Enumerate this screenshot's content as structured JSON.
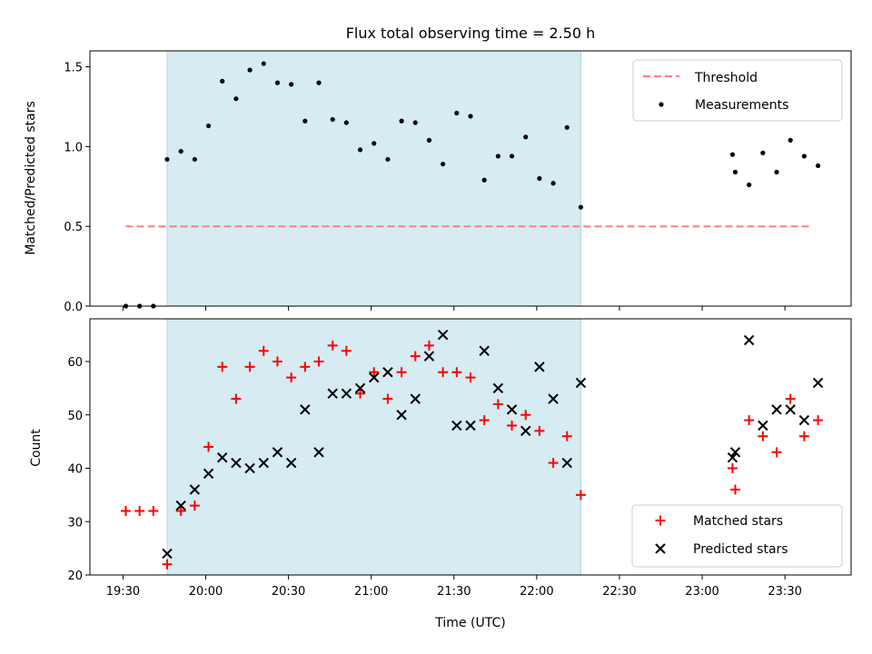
{
  "chart_data": {
    "title": "Flux total observing time = 2.50 h",
    "xlabel": "Time (UTC)",
    "x_ticks": [
      "19:30",
      "20:00",
      "20:30",
      "21:00",
      "21:30",
      "22:00",
      "22:30",
      "23:00",
      "23:30"
    ],
    "x_tick_minutes": [
      1170,
      1200,
      1230,
      1260,
      1290,
      1320,
      1350,
      1380,
      1410
    ],
    "xlim": [
      "19:18",
      "23:54"
    ],
    "shaded_span": [
      "19:46",
      "22:16"
    ],
    "colors": {
      "shade": "#add8e6",
      "threshold": "#ff7f7f",
      "measurements": "#000000",
      "matched": "#ff0000",
      "predicted": "#000000"
    },
    "panels": [
      {
        "type": "scatter",
        "ylabel": "Matched/Predicted stars",
        "ylim": [
          0,
          1.6
        ],
        "yticks": [
          0.0,
          0.5,
          1.0,
          1.5
        ],
        "ytick_labels": [
          "0.0",
          "0.5",
          "1.0",
          "1.5"
        ],
        "legend_position": "top-right",
        "threshold": {
          "name": "Threshold",
          "value": 0.5,
          "x_range": [
            "19:31",
            "23:40"
          ]
        },
        "series": [
          {
            "name": "Measurements",
            "x": [
              "19:31",
              "19:36",
              "19:41",
              "19:46",
              "19:51",
              "19:56",
              "20:01",
              "20:06",
              "20:11",
              "20:16",
              "20:21",
              "20:26",
              "20:31",
              "20:36",
              "20:41",
              "20:46",
              "20:51",
              "20:56",
              "21:01",
              "21:06",
              "21:11",
              "21:16",
              "21:21",
              "21:26",
              "21:31",
              "21:36",
              "21:41",
              "21:46",
              "21:51",
              "21:56",
              "22:01",
              "22:06",
              "22:11",
              "22:16",
              "23:11",
              "23:12",
              "23:17",
              "23:22",
              "23:27",
              "23:32",
              "23:37",
              "23:42"
            ],
            "y": [
              0,
              0,
              0,
              0.92,
              0.97,
              0.92,
              1.13,
              1.41,
              1.3,
              1.48,
              1.52,
              1.4,
              1.39,
              1.16,
              1.4,
              1.17,
              1.15,
              0.98,
              1.02,
              0.92,
              1.16,
              1.15,
              1.04,
              0.89,
              1.21,
              1.19,
              0.79,
              0.94,
              0.94,
              1.06,
              0.8,
              0.77,
              1.12,
              0.62,
              0.95,
              0.84,
              0.76,
              0.96,
              0.84,
              1.04,
              0.94,
              0.88
            ]
          }
        ]
      },
      {
        "type": "scatter",
        "ylabel": "Count",
        "ylim": [
          20,
          68
        ],
        "yticks": [
          20,
          30,
          40,
          50,
          60
        ],
        "ytick_labels": [
          "20",
          "30",
          "40",
          "50",
          "60"
        ],
        "legend_position": "bottom-right",
        "series": [
          {
            "name": "Matched stars",
            "marker": "+",
            "x": [
              "19:31",
              "19:36",
              "19:41",
              "19:46",
              "19:51",
              "19:56",
              "20:01",
              "20:06",
              "20:11",
              "20:16",
              "20:21",
              "20:26",
              "20:31",
              "20:36",
              "20:41",
              "20:46",
              "20:51",
              "20:56",
              "21:01",
              "21:06",
              "21:11",
              "21:16",
              "21:21",
              "21:26",
              "21:31",
              "21:36",
              "21:41",
              "21:46",
              "21:51",
              "21:56",
              "22:01",
              "22:06",
              "22:11",
              "22:16",
              "23:11",
              "23:12",
              "23:17",
              "23:22",
              "23:27",
              "23:32",
              "23:37",
              "23:42"
            ],
            "y": [
              32,
              32,
              32,
              22,
              32,
              33,
              44,
              59,
              53,
              59,
              62,
              60,
              57,
              59,
              60,
              63,
              62,
              54,
              58,
              53,
              58,
              61,
              63,
              58,
              58,
              57,
              49,
              52,
              48,
              50,
              47,
              41,
              46,
              35,
              40,
              36,
              49,
              46,
              43,
              53,
              46,
              49
            ]
          },
          {
            "name": "Predicted stars",
            "marker": "x",
            "x": [
              "19:46",
              "19:51",
              "19:56",
              "20:01",
              "20:06",
              "20:11",
              "20:16",
              "20:21",
              "20:26",
              "20:31",
              "20:36",
              "20:41",
              "20:46",
              "20:51",
              "20:56",
              "21:01",
              "21:06",
              "21:11",
              "21:16",
              "21:21",
              "21:26",
              "21:31",
              "21:36",
              "21:41",
              "21:46",
              "21:51",
              "21:56",
              "22:01",
              "22:06",
              "22:11",
              "22:16",
              "23:11",
              "23:12",
              "23:17",
              "23:22",
              "23:27",
              "23:32",
              "23:37",
              "23:42"
            ],
            "y": [
              24,
              33,
              36,
              39,
              42,
              41,
              40,
              41,
              43,
              41,
              51,
              43,
              54,
              54,
              55,
              57,
              58,
              50,
              53,
              61,
              65,
              48,
              48,
              62,
              55,
              51,
              47,
              59,
              53,
              41,
              56,
              42,
              43,
              64,
              48,
              51,
              51,
              49,
              56
            ]
          }
        ]
      }
    ]
  }
}
